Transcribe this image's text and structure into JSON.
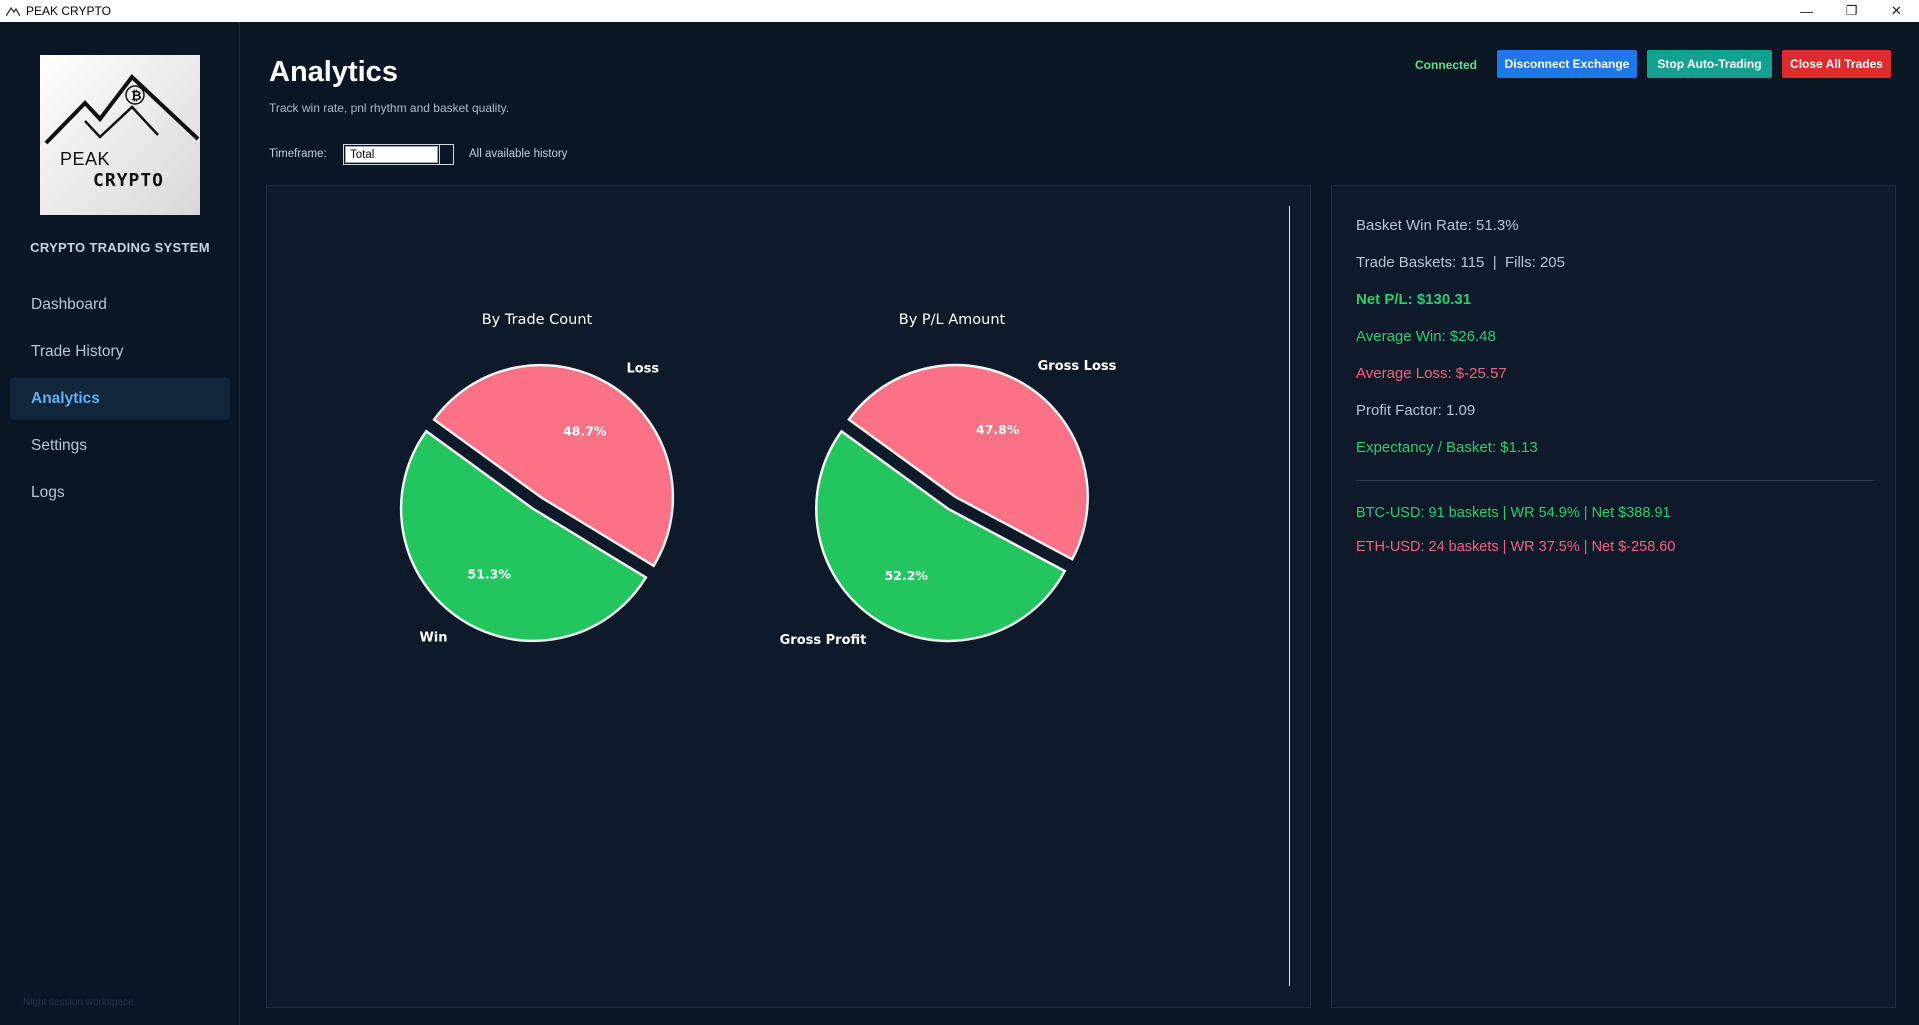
{
  "window": {
    "title": "PEAK CRYPTO",
    "controls": [
      "—",
      "❐",
      "✕"
    ]
  },
  "sidebar": {
    "logo": {
      "line1": "PEAK",
      "line2": "CRYPTO"
    },
    "system_title": "CRYPTO TRADING SYSTEM",
    "items": [
      {
        "label": "Dashboard",
        "active": false
      },
      {
        "label": "Trade History",
        "active": false
      },
      {
        "label": "Analytics",
        "active": true
      },
      {
        "label": "Settings",
        "active": false
      },
      {
        "label": "Logs",
        "active": false
      }
    ],
    "footer": "Night session workspace"
  },
  "header": {
    "title": "Analytics",
    "subtitle": "Track win rate, pnl rhythm and basket quality.",
    "status": "Connected",
    "buttons": {
      "disconnect": "Disconnect Exchange",
      "stop": "Stop Auto-Trading",
      "close_all": "Close All Trades"
    },
    "timeframe": {
      "label": "Timeframe:",
      "value": "Total",
      "hint": "All available history"
    }
  },
  "colors": {
    "win": "#22c55e",
    "loss": "#fb7185",
    "accent": "#5fb0f5",
    "disconnect": "#1f78e8",
    "stop": "#12a190",
    "close": "#de2c2c"
  },
  "chart_data": [
    {
      "type": "pie",
      "title": "By Trade Count",
      "categories": [
        "Win",
        "Loss"
      ],
      "values": [
        51.3,
        48.7
      ],
      "labels": [
        "51.3%",
        "48.7%"
      ],
      "colors": [
        "#22c55e",
        "#fb7185"
      ],
      "explode": "slight"
    },
    {
      "type": "pie",
      "title": "By P/L Amount",
      "categories": [
        "Gross Profit",
        "Gross Loss"
      ],
      "values": [
        52.2,
        47.8
      ],
      "labels": [
        "52.2%",
        "47.8%"
      ],
      "colors": [
        "#22c55e",
        "#fb7185"
      ],
      "explode": "slight"
    }
  ],
  "stats": {
    "win_rate": "Basket Win Rate: 51.3%",
    "baskets_fills": "Trade Baskets: 115  |  Fills: 205",
    "net_pl": "Net P/L: $130.31",
    "avg_win": "Average Win: $26.48",
    "avg_loss": "Average Loss: $-25.57",
    "profit_factor": "Profit Factor: 1.09",
    "expectancy": "Expectancy / Basket: $1.13",
    "pairs": [
      {
        "text": "BTC-USD: 91 baskets | WR 54.9% | Net $388.91",
        "positive": true
      },
      {
        "text": "ETH-USD: 24 baskets | WR 37.5% | Net $-258.60",
        "positive": false
      }
    ]
  }
}
